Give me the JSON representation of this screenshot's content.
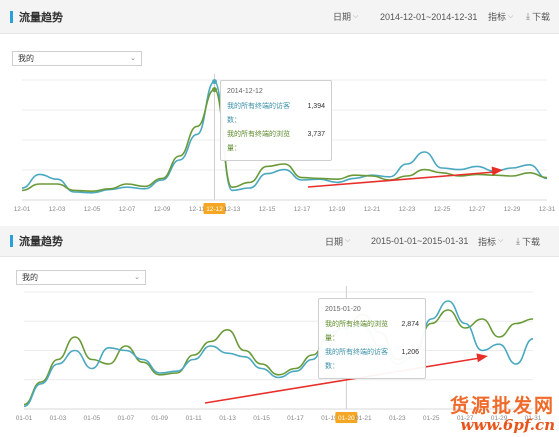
{
  "panels": [
    {
      "title": "流量趋势",
      "date_label": "日期",
      "date_range": "2014-12-01~2014-12-31",
      "metric_label": "指标",
      "download_label": "下载",
      "dropdown_value": "我的",
      "tooltip": {
        "date": "2014-12-12",
        "rows": [
          {
            "label": "我的所有终端的访客数：",
            "value": "1,394",
            "color": "#3a8fa8"
          },
          {
            "label": "我的所有终端的浏览量：",
            "value": "3,737",
            "color": "#5c8a2a"
          }
        ]
      },
      "chart_data": {
        "type": "line",
        "x": [
          "12-01",
          "12-02",
          "12-03",
          "12-04",
          "12-05",
          "12-06",
          "12-07",
          "12-08",
          "12-09",
          "12-10",
          "12-11",
          "12-12",
          "12-13",
          "12-14",
          "12-15",
          "12-16",
          "12-17",
          "12-18",
          "12-19",
          "12-20",
          "12-21",
          "12-22",
          "12-23",
          "12-24",
          "12-25",
          "12-26",
          "12-27",
          "12-28",
          "12-29",
          "12-30",
          "12-31"
        ],
        "tick_labels": [
          "12-01",
          "12-03",
          "12-05",
          "12-07",
          "12-09",
          "12-11",
          "12-12",
          "12-13",
          "12-15",
          "12-17",
          "12-19",
          "12-21",
          "12-23",
          "12-25",
          "12-27",
          "12-29",
          "12-31"
        ],
        "highlight_x": "12-12",
        "series": [
          {
            "color": "#4aa8c0",
            "values": [
              15,
              32,
              26,
              10,
              9,
              13,
              16,
              14,
              25,
              50,
              82,
              148,
              12,
              15,
              33,
              38,
              25,
              26,
              22,
              27,
              31,
              29,
              45,
              60,
              40,
              38,
              42,
              36,
              40,
              44,
              27
            ]
          },
          {
            "color": "#6a9a38",
            "values": [
              12,
              20,
              20,
              12,
              11,
              14,
              20,
              17,
              27,
              55,
              92,
              138,
              16,
              22,
              42,
              45,
              28,
              27,
              26,
              31,
              30,
              25,
              30,
              38,
              34,
              30,
              32,
              31,
              30,
              34,
              28
            ]
          }
        ],
        "ylim": [
          0,
          150
        ],
        "grid": true
      }
    },
    {
      "title": "流量趋势",
      "date_label": "日期",
      "date_range": "2015-01-01~2015-01-31",
      "metric_label": "指标",
      "download_label": "下载",
      "dropdown_value": "我的",
      "tooltip": {
        "date": "2015-01-20",
        "rows": [
          {
            "label": "我的所有终端的浏览量：",
            "value": "2,874",
            "color": "#5c8a2a"
          },
          {
            "label": "我的所有终端的访客数：",
            "value": "1,206",
            "color": "#3a8fa8"
          }
        ]
      },
      "chart_data": {
        "type": "line",
        "x": [
          "01-01",
          "01-02",
          "01-03",
          "01-04",
          "01-05",
          "01-06",
          "01-07",
          "01-08",
          "01-09",
          "01-10",
          "01-11",
          "01-12",
          "01-13",
          "01-14",
          "01-15",
          "01-16",
          "01-17",
          "01-18",
          "01-19",
          "01-20",
          "01-21",
          "01-22",
          "01-23",
          "01-24",
          "01-25",
          "01-26",
          "01-27",
          "01-28",
          "01-29",
          "01-30",
          "01-31"
        ],
        "tick_labels": [
          "01-01",
          "01-03",
          "01-05",
          "01-07",
          "01-09",
          "01-11",
          "01-13",
          "01-15",
          "01-17",
          "01-19",
          "01-20",
          "01-21",
          "01-23",
          "01-25",
          "01-27",
          "01-29",
          "01-31"
        ],
        "highlight_x": "01-20",
        "series": [
          {
            "color": "#6a9a38",
            "values": [
              5,
              30,
              55,
              80,
              55,
              50,
              70,
              52,
              38,
              40,
              60,
              75,
              88,
              65,
              50,
              38,
              45,
              60,
              80,
              95,
              105,
              85,
              55,
              65,
              95,
              110,
              90,
              100,
              80,
              95,
              100
            ]
          },
          {
            "color": "#4aa8c0",
            "values": [
              3,
              28,
              50,
              65,
              45,
              68,
              65,
              55,
              40,
              42,
              55,
              70,
              62,
              58,
              45,
              35,
              42,
              55,
              85,
              90,
              92,
              70,
              50,
              58,
              100,
              120,
              95,
              65,
              72,
              50,
              78
            ]
          }
        ],
        "ylim": [
          0,
          130
        ],
        "grid": true
      }
    }
  ],
  "watermark": {
    "line1": "货源批发网",
    "line2": "www.6pf.cn"
  }
}
